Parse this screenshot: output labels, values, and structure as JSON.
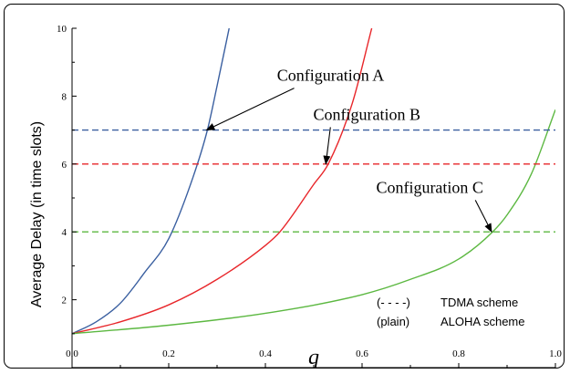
{
  "chart_data": {
    "type": "line",
    "xlabel": "q",
    "ylabel": "Average Delay (in time slots)",
    "xlim": [
      0.0,
      1.0
    ],
    "ylim": [
      0,
      10
    ],
    "xticks": [
      "0.0",
      "0.2",
      "0.4",
      "0.6",
      "0.8",
      "1.0"
    ],
    "yticks": [
      "2",
      "4",
      "6",
      "8",
      "10"
    ],
    "grid": false,
    "series": [
      {
        "config": "A",
        "scheme": "ALOHA",
        "color": "#3a5fa0",
        "style": "solid",
        "x": [
          0.0,
          0.05,
          0.1,
          0.15,
          0.2,
          0.25,
          0.28,
          0.3,
          0.325
        ],
        "y": [
          1.0,
          1.35,
          1.9,
          2.8,
          3.8,
          5.6,
          7.0,
          8.3,
          10.0
        ]
      },
      {
        "config": "B",
        "scheme": "ALOHA",
        "color": "#e8262a",
        "style": "solid",
        "x": [
          0.0,
          0.1,
          0.2,
          0.3,
          0.4,
          0.43,
          0.5,
          0.53,
          0.58,
          0.62
        ],
        "y": [
          1.0,
          1.35,
          1.85,
          2.6,
          3.6,
          4.0,
          5.4,
          6.0,
          7.8,
          10.0
        ]
      },
      {
        "config": "C",
        "scheme": "ALOHA",
        "color": "#5cb841",
        "style": "solid",
        "x": [
          0.0,
          0.2,
          0.4,
          0.6,
          0.7,
          0.8,
          0.87,
          0.9,
          0.95,
          1.0
        ],
        "y": [
          1.0,
          1.25,
          1.6,
          2.15,
          2.6,
          3.2,
          4.0,
          4.5,
          5.7,
          7.6
        ]
      },
      {
        "config": "A",
        "scheme": "TDMA",
        "color": "#3a5fa0",
        "style": "dashed",
        "x": [
          0.0,
          1.0
        ],
        "y": [
          7,
          7
        ]
      },
      {
        "config": "B",
        "scheme": "TDMA",
        "color": "#e8262a",
        "style": "dashed",
        "x": [
          0.0,
          1.0
        ],
        "y": [
          6,
          6
        ]
      },
      {
        "config": "C",
        "scheme": "TDMA",
        "color": "#5cb841",
        "style": "dashed",
        "x": [
          0.0,
          1.0
        ],
        "y": [
          4,
          4
        ]
      }
    ],
    "annotations": [
      {
        "text": "Configuration A",
        "text_x": 0.535,
        "text_y": 8.45,
        "arrow_to": [
          0.278,
          7.0
        ]
      },
      {
        "text": "Configuration B",
        "text_x": 0.61,
        "text_y": 7.3,
        "arrow_to": [
          0.525,
          6.0
        ]
      },
      {
        "text": "Configuration C",
        "text_x": 0.74,
        "text_y": 5.15,
        "arrow_to": [
          0.868,
          4.0
        ]
      }
    ],
    "legend": {
      "placement": "bottom-right",
      "entries": [
        {
          "marker": "(- - - -)",
          "label": "TDMA scheme"
        },
        {
          "marker": "(plain)",
          "label": "ALOHA scheme"
        }
      ]
    }
  }
}
